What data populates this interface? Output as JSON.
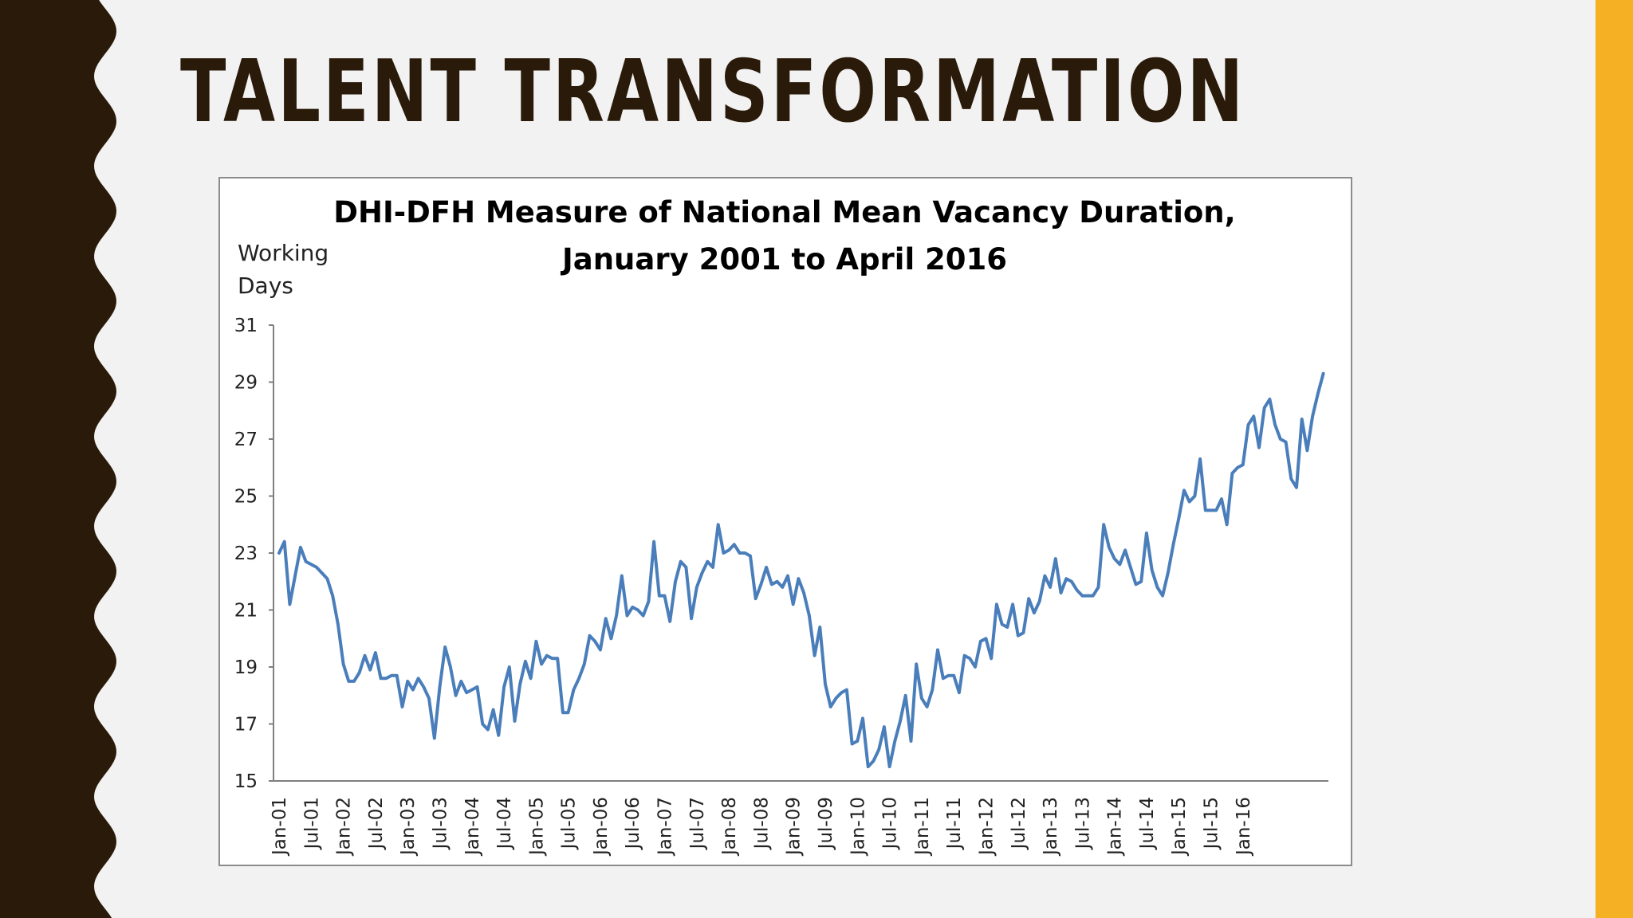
{
  "colors": {
    "left_band": "#2a1a09",
    "right_band": "#f5b024",
    "title": "#2a1a09",
    "series_line": "#4a7ebb",
    "axis": "#7f7f7f"
  },
  "slide": {
    "title": "TALENT TRANSFORMATION"
  },
  "chart_data": {
    "type": "line",
    "title_lines": [
      "DHI-DFH Measure of National Mean Vacancy Duration,",
      "January 2001 to April 2016"
    ],
    "ylabel_lines": [
      "Working",
      "Days"
    ],
    "ylim": [
      15,
      31
    ],
    "yticks": [
      15,
      17,
      19,
      21,
      23,
      25,
      27,
      29,
      31
    ],
    "xtick_labels": [
      "Jan-01",
      "Jul-01",
      "Jan-02",
      "Jul-02",
      "Jan-03",
      "Jul-03",
      "Jan-04",
      "Jul-04",
      "Jan-05",
      "Jul-05",
      "Jan-06",
      "Jul-06",
      "Jan-07",
      "Jul-07",
      "Jan-08",
      "Jul-08",
      "Jan-09",
      "Jul-09",
      "Jan-10",
      "Jul-10",
      "Jan-11",
      "Jul-11",
      "Jan-12",
      "Jul-12",
      "Jan-13",
      "Jul-13",
      "Jan-14",
      "Jul-14",
      "Jan-15",
      "Jul-15",
      "Jan-16"
    ],
    "grid": false,
    "legend": "none",
    "x_start": "Jan-01",
    "x_end": "Apr-16",
    "values": [
      23.0,
      23.4,
      21.2,
      22.2,
      23.2,
      22.7,
      22.6,
      22.5,
      22.3,
      22.1,
      21.5,
      20.5,
      19.1,
      18.5,
      18.5,
      18.8,
      19.4,
      18.9,
      19.5,
      18.6,
      18.6,
      18.7,
      18.7,
      17.6,
      18.5,
      18.2,
      18.6,
      18.3,
      17.9,
      16.5,
      18.3,
      19.7,
      19.0,
      18.0,
      18.5,
      18.1,
      18.2,
      18.3,
      17.0,
      16.8,
      17.5,
      16.6,
      18.3,
      19.0,
      17.1,
      18.4,
      19.2,
      18.6,
      19.9,
      19.1,
      19.4,
      19.3,
      19.3,
      17.4,
      17.4,
      18.2,
      18.6,
      19.1,
      20.1,
      19.9,
      19.6,
      20.7,
      20.0,
      20.8,
      22.2,
      20.8,
      21.1,
      21.0,
      20.8,
      21.3,
      23.4,
      21.5,
      21.5,
      20.6,
      22.0,
      22.7,
      22.5,
      20.7,
      21.8,
      22.3,
      22.7,
      22.5,
      24.0,
      23.0,
      23.1,
      23.3,
      23.0,
      23.0,
      22.9,
      21.4,
      21.9,
      22.5,
      21.9,
      22.0,
      21.8,
      22.2,
      21.2,
      22.1,
      21.6,
      20.8,
      19.4,
      20.4,
      18.4,
      17.6,
      17.9,
      18.1,
      18.2,
      16.3,
      16.4,
      17.2,
      15.5,
      15.7,
      16.1,
      16.9,
      15.5,
      16.4,
      17.1,
      18.0,
      16.4,
      19.1,
      17.9,
      17.6,
      18.2,
      19.6,
      18.6,
      18.7,
      18.7,
      18.1,
      19.4,
      19.3,
      19.0,
      19.9,
      20.0,
      19.3,
      21.2,
      20.5,
      20.4,
      21.2,
      20.1,
      20.2,
      21.4,
      20.9,
      21.3,
      22.2,
      21.8,
      22.8,
      21.6,
      22.1,
      22.0,
      21.7,
      21.5,
      21.5,
      21.5,
      21.8,
      24.0,
      23.2,
      22.8,
      22.6,
      23.1,
      22.5,
      21.9,
      22.0,
      23.7,
      22.4,
      21.8,
      21.5,
      22.3,
      23.3,
      24.2,
      25.2,
      24.8,
      25.0,
      26.3,
      24.5,
      24.5,
      24.5,
      24.9,
      24.0,
      25.8,
      26.0,
      26.1,
      27.5,
      27.8,
      26.7,
      28.1,
      28.4,
      27.5,
      27.0,
      26.9,
      25.6,
      25.3,
      27.7,
      26.6,
      27.8,
      28.6,
      29.3
    ]
  }
}
